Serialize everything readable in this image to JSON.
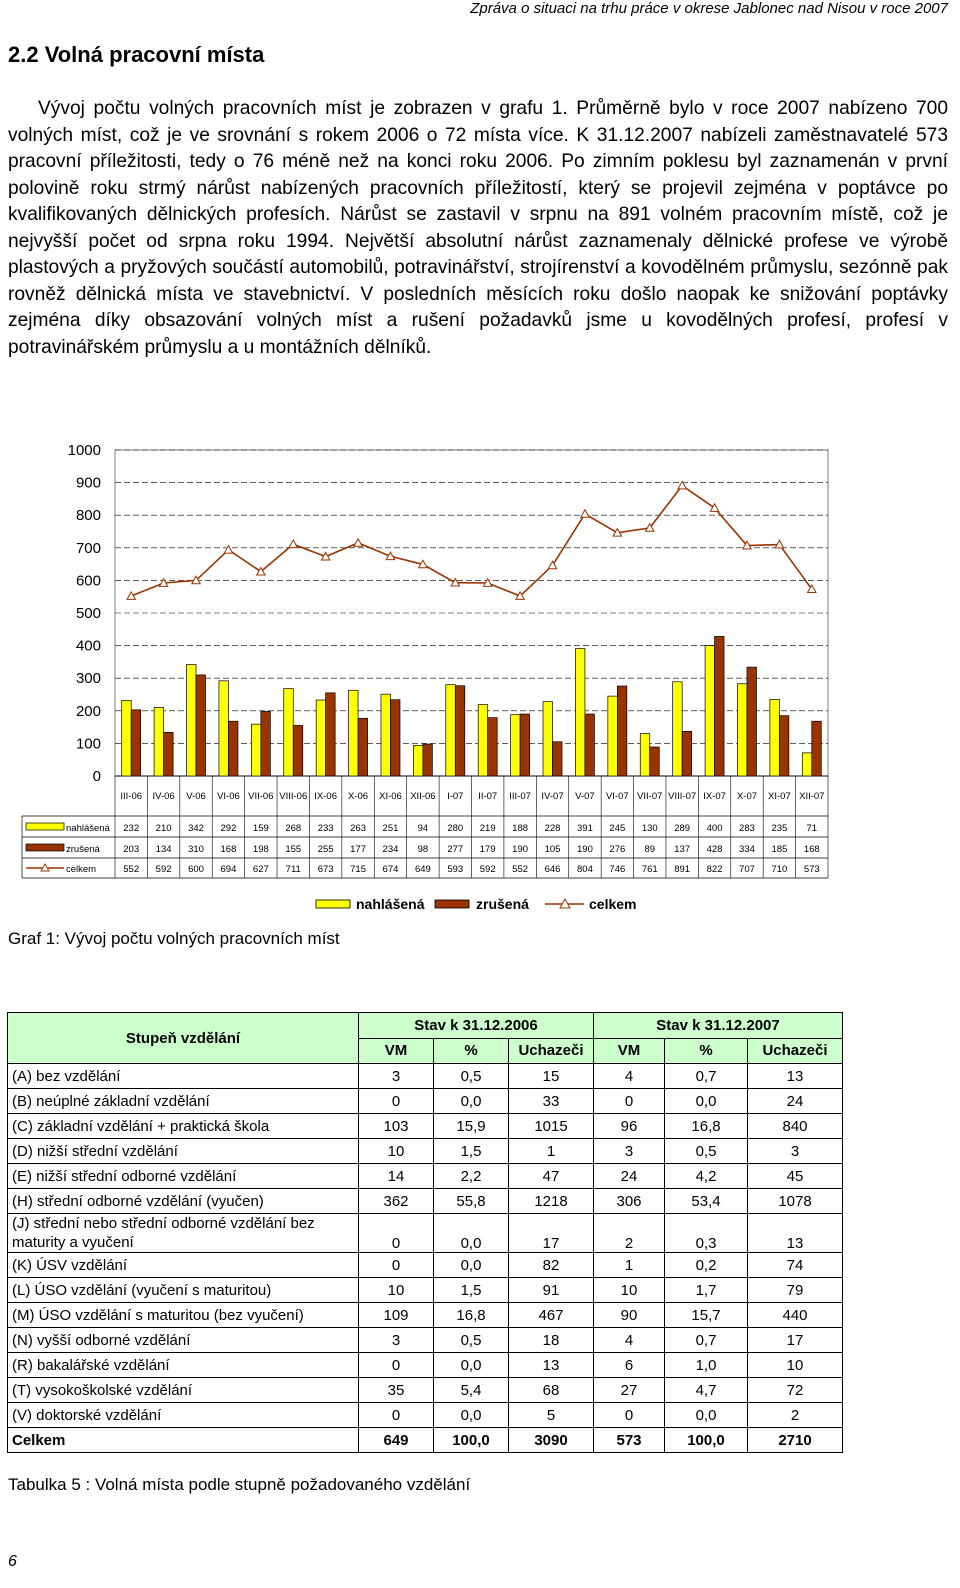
{
  "header": {
    "title": "Zpráva o situaci na trhu práce v okrese Jablonec nad Nisou v roce 2007"
  },
  "section": {
    "title": "2.2 Volná pracovní místa"
  },
  "paragraph": "Vývoj počtu volných pracovních míst je zobrazen v grafu 1. Průměrně bylo v roce 2007 nabízeno 700 volných míst, což je ve srovnání s rokem 2006 o 72 místa více. K 31.12.2007 nabízeli zaměstnavatelé 573 pracovní příležitosti, tedy o 76 méně než na konci roku 2006. Po zimním poklesu byl zaznamenán v první polovině roku strmý nárůst nabízených pracovních příležitostí, který se projevil zejména v poptávce po kvalifikovaných dělnických profesích. Nárůst se zastavil v srpnu na 891 volném pracovním místě, což je nejvyšší počet od srpna roku 1994. Největší absolutní nárůst zaznamenaly dělnické profese ve výrobě plastových a pryžových součástí automobilů, potravinářství, strojírenství a kovodělném průmyslu, sezónně pak rovněž dělnická místa ve stavebnictví. V posledních měsících roku došlo naopak ke snižování poptávky zejména díky obsazování volných míst a rušení požadavků jsme u kovodělných profesí, profesí v potravinářském průmyslu a u montážních dělníků.",
  "chart_data": {
    "type": "bar",
    "categories": [
      "III-06",
      "IV-06",
      "V-06",
      "VI-06",
      "VII-06",
      "VIII-06",
      "IX-06",
      "X-06",
      "XI-06",
      "XII-06",
      "I-07",
      "II-07",
      "III-07",
      "IV-07",
      "V-07",
      "VI-07",
      "VII-07",
      "VIII-07",
      "IX-07",
      "X-07",
      "XI-07",
      "XII-07"
    ],
    "series": [
      {
        "name": "nahlášená",
        "type": "bar",
        "color": "#ffff00",
        "values": [
          232,
          210,
          342,
          292,
          159,
          268,
          233,
          263,
          251,
          94,
          280,
          219,
          188,
          228,
          391,
          245,
          130,
          289,
          400,
          283,
          235,
          71
        ]
      },
      {
        "name": "zrušená",
        "type": "bar",
        "color": "#993300",
        "values": [
          203,
          134,
          310,
          168,
          198,
          155,
          255,
          177,
          234,
          98,
          277,
          179,
          190,
          105,
          190,
          276,
          89,
          137,
          428,
          334,
          185,
          168
        ]
      },
      {
        "name": "celkem",
        "type": "line",
        "marker": "triangle",
        "color": "#993300",
        "values": [
          552,
          592,
          600,
          694,
          627,
          711,
          673,
          715,
          674,
          649,
          593,
          592,
          552,
          646,
          804,
          746,
          761,
          891,
          822,
          707,
          710,
          573
        ]
      }
    ],
    "yticks": [
      "1000",
      "900",
      "800",
      "700",
      "600",
      "500",
      "400",
      "300",
      "200",
      "100",
      "0"
    ],
    "ylim": [
      0,
      1000
    ],
    "grid": true,
    "legend_position": "bottom",
    "legend_labels": [
      "nahlášená",
      "zrušená",
      "celkem"
    ],
    "data_table_labels": [
      "nahlášená",
      "zrušená",
      "celkem"
    ]
  },
  "chart_caption": "Graf 1: Vývoj počtu volných pracovních míst",
  "table": {
    "header_label": "Stupeň vzdělání",
    "group_headers": [
      "Stav k 31.12.2006",
      "Stav k 31.12.2007"
    ],
    "sub_headers": [
      "VM",
      "%",
      "Uchazeči",
      "VM",
      "%",
      "Uchazeči"
    ],
    "rows": [
      {
        "label": "(A) bez vzdělání",
        "values": [
          "3",
          "0,5",
          "15",
          "4",
          "0,7",
          "13"
        ]
      },
      {
        "label": "(B) neúplné základní vzdělání",
        "values": [
          "0",
          "0,0",
          "33",
          "0",
          "0,0",
          "24"
        ]
      },
      {
        "label": "(C) základní vzdělání + praktická škola",
        "values": [
          "103",
          "15,9",
          "1015",
          "96",
          "16,8",
          "840"
        ]
      },
      {
        "label": "(D) nižší střední vzdělání",
        "values": [
          "10",
          "1,5",
          "1",
          "3",
          "0,5",
          "3"
        ]
      },
      {
        "label": "(E) nižší střední odborné vzdělání",
        "values": [
          "14",
          "2,2",
          "47",
          "24",
          "4,2",
          "45"
        ]
      },
      {
        "label": "(H) střední odborné vzdělání (vyučen)",
        "values": [
          "362",
          "55,8",
          "1218",
          "306",
          "53,4",
          "1078"
        ]
      },
      {
        "label": "(J) střední nebo střední odborné vzdělání bez maturity a vyučení",
        "values": [
          "0",
          "0,0",
          "17",
          "2",
          "0,3",
          "13"
        ]
      },
      {
        "label": "(K) ÚSV vzdělání",
        "values": [
          "0",
          "0,0",
          "82",
          "1",
          "0,2",
          "74"
        ]
      },
      {
        "label": "(L) ÚSO vzdělání (vyučení s maturitou)",
        "values": [
          "10",
          "1,5",
          "91",
          "10",
          "1,7",
          "79"
        ]
      },
      {
        "label": "(M) ÚSO vzdělání s maturitou (bez vyučení)",
        "values": [
          "109",
          "16,8",
          "467",
          "90",
          "15,7",
          "440"
        ]
      },
      {
        "label": "(N) vyšší odborné vzdělání",
        "values": [
          "3",
          "0,5",
          "18",
          "4",
          "0,7",
          "17"
        ]
      },
      {
        "label": "(R) bakalářské vzdělání",
        "values": [
          "0",
          "0,0",
          "13",
          "6",
          "1,0",
          "10"
        ]
      },
      {
        "label": "(T) vysokoškolské vzdělání",
        "values": [
          "35",
          "5,4",
          "68",
          "27",
          "4,7",
          "72"
        ]
      },
      {
        "label": "(V) doktorské vzdělání",
        "values": [
          "0",
          "0,0",
          "5",
          "0",
          "0,0",
          "2"
        ]
      }
    ],
    "total": {
      "label": "Celkem",
      "values": [
        "649",
        "100,0",
        "3090",
        "573",
        "100,0",
        "2710"
      ]
    }
  },
  "table_caption": "Tabulka 5 : Volná místa podle stupně požadovaného vzdělání",
  "page_number": "6"
}
